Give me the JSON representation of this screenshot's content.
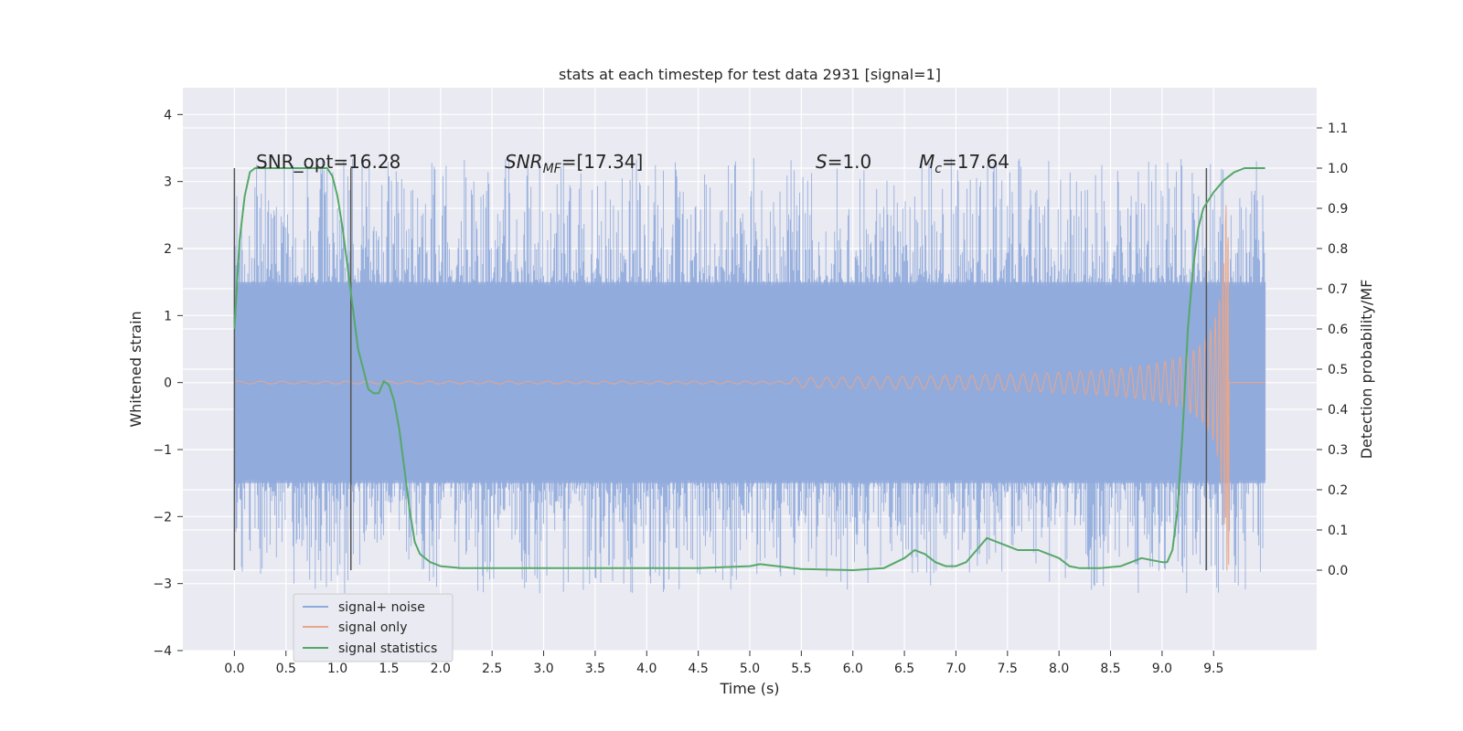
{
  "chart_data": {
    "type": "line",
    "title": "stats at each timestep for test data 2931 [signal=1]",
    "xlabel": "Time (s)",
    "ylabel": "Whitened strain",
    "ylabel_right": "Detection probability/MF",
    "xlim": [
      -0.5,
      10.5
    ],
    "ylim": [
      -4,
      4.4
    ],
    "ylim_right": [
      -0.2,
      1.2
    ],
    "x_ticks": [
      "0.0",
      "0.5",
      "1.0",
      "1.5",
      "2.0",
      "2.5",
      "3.0",
      "3.5",
      "4.0",
      "4.5",
      "5.0",
      "5.5",
      "6.0",
      "6.5",
      "7.0",
      "7.5",
      "8.0",
      "8.5",
      "9.0",
      "9.5"
    ],
    "y_ticks": [
      "4",
      "3",
      "2",
      "1",
      "0",
      "−1",
      "−2",
      "−3",
      "−4"
    ],
    "y_right_ticks": [
      "1.1",
      "1.0",
      "0.9",
      "0.8",
      "0.7",
      "0.6",
      "0.5",
      "0.4",
      "0.3",
      "0.2",
      "0.1",
      "0.0"
    ],
    "grid": true,
    "legend_position": "lower-left",
    "annotations": {
      "snr_opt": "SNR_opt=16.28",
      "snr_mf_base": "SNR",
      "snr_mf_sub": "MF",
      "snr_mf_rest": "=[17.34]",
      "s_sym": "S",
      "s_rest": "=1.0",
      "mc_base": "M",
      "mc_sub": "c",
      "mc_rest": "=17.64"
    },
    "vertical_markers": [
      0.0,
      1.13,
      9.43
    ],
    "series": [
      {
        "name": "signal+ noise",
        "color": "#8faadc",
        "x_range": [
          0.0,
          10.0
        ],
        "envelope": "noise amplitude about ±1.5 (peaks to about ±3.5)"
      },
      {
        "name": "signal only",
        "color": "#e8a58a",
        "x_range": [
          0.0,
          10.0
        ],
        "envelope": "chirp: ~0 before 5.5 s, grows to about ±1.0 at 9.4 s, merges near 9.65 s with peak about +2.9 / −3.0, then ~0"
      },
      {
        "name": "signal statistics",
        "color": "#55a868",
        "x": [
          0.0,
          0.05,
          0.1,
          0.15,
          0.2,
          0.3,
          0.5,
          0.7,
          0.9,
          0.95,
          1.0,
          1.05,
          1.1,
          1.15,
          1.2,
          1.25,
          1.3,
          1.35,
          1.4,
          1.45,
          1.5,
          1.55,
          1.6,
          1.65,
          1.7,
          1.75,
          1.8,
          1.85,
          1.9,
          2.0,
          2.2,
          2.5,
          3.0,
          3.5,
          4.0,
          4.5,
          5.0,
          5.1,
          5.2,
          5.5,
          6.0,
          6.3,
          6.5,
          6.6,
          6.7,
          6.8,
          6.9,
          7.0,
          7.1,
          7.2,
          7.3,
          7.4,
          7.5,
          7.6,
          7.7,
          7.8,
          7.9,
          8.0,
          8.1,
          8.2,
          8.4,
          8.6,
          8.8,
          9.0,
          9.05,
          9.1,
          9.15,
          9.2,
          9.25,
          9.3,
          9.35,
          9.4,
          9.45,
          9.5,
          9.6,
          9.7,
          9.8,
          9.9,
          10.0
        ],
        "values": [
          0.6,
          0.82,
          0.93,
          0.99,
          1.0,
          1.0,
          1.0,
          1.0,
          1.0,
          0.98,
          0.93,
          0.85,
          0.75,
          0.65,
          0.55,
          0.5,
          0.45,
          0.44,
          0.44,
          0.47,
          0.46,
          0.42,
          0.35,
          0.25,
          0.15,
          0.07,
          0.04,
          0.03,
          0.02,
          0.01,
          0.005,
          0.005,
          0.005,
          0.005,
          0.005,
          0.005,
          0.01,
          0.015,
          0.012,
          0.003,
          0.0,
          0.005,
          0.03,
          0.05,
          0.04,
          0.02,
          0.01,
          0.01,
          0.02,
          0.05,
          0.08,
          0.07,
          0.06,
          0.05,
          0.05,
          0.05,
          0.04,
          0.03,
          0.01,
          0.005,
          0.005,
          0.01,
          0.03,
          0.02,
          0.02,
          0.05,
          0.15,
          0.35,
          0.6,
          0.75,
          0.85,
          0.9,
          0.92,
          0.94,
          0.97,
          0.99,
          1.0,
          1.0,
          1.0
        ]
      }
    ]
  },
  "legend": {
    "items": [
      {
        "label": "signal+ noise",
        "color": "#8faadc"
      },
      {
        "label": "signal only",
        "color": "#e8a58a"
      },
      {
        "label": "signal statistics",
        "color": "#55a868"
      }
    ]
  }
}
